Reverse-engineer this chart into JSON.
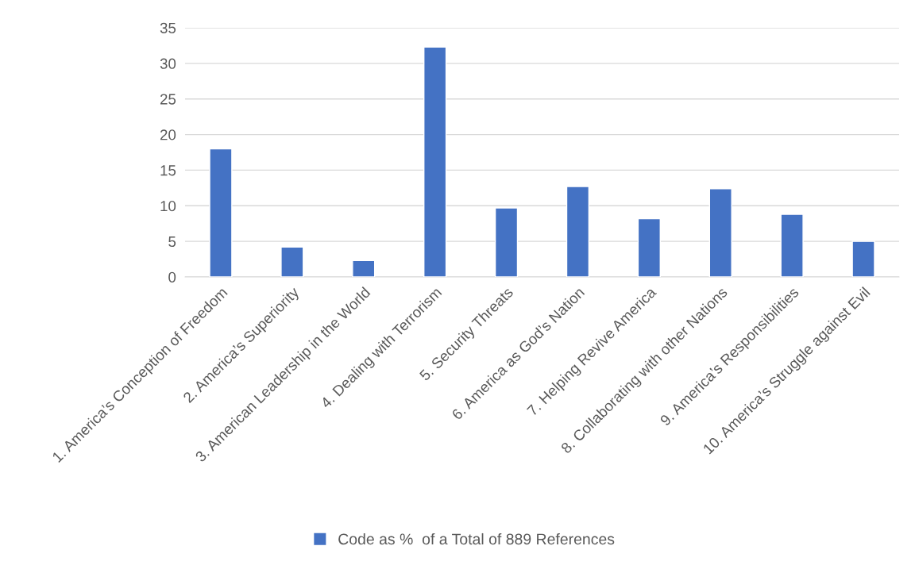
{
  "chart_data": {
    "type": "bar",
    "categories": [
      "1. America’s Conception of Freedom",
      "2. America’s Superiority",
      "3. American Leadership in the World",
      "4. Dealing with Terrorism",
      "5. Security Threats",
      "6. America as God’s Nation",
      "7. Helping Revive America",
      "8. Collaborating with other Nations",
      "9. America’s Responsibilities",
      "10. America’s Struggle against Evil"
    ],
    "series": [
      {
        "name": "Code as %  of a Total of 889 References",
        "color": "#4472c4",
        "values": [
          18.0,
          4.2,
          2.3,
          32.3,
          9.7,
          12.7,
          8.2,
          12.4,
          8.8,
          5.0
        ]
      }
    ],
    "ylim": [
      0,
      35
    ],
    "yticks": [
      0,
      5,
      10,
      15,
      20,
      25,
      30,
      35
    ],
    "grid": "y",
    "legend": "bottom"
  }
}
